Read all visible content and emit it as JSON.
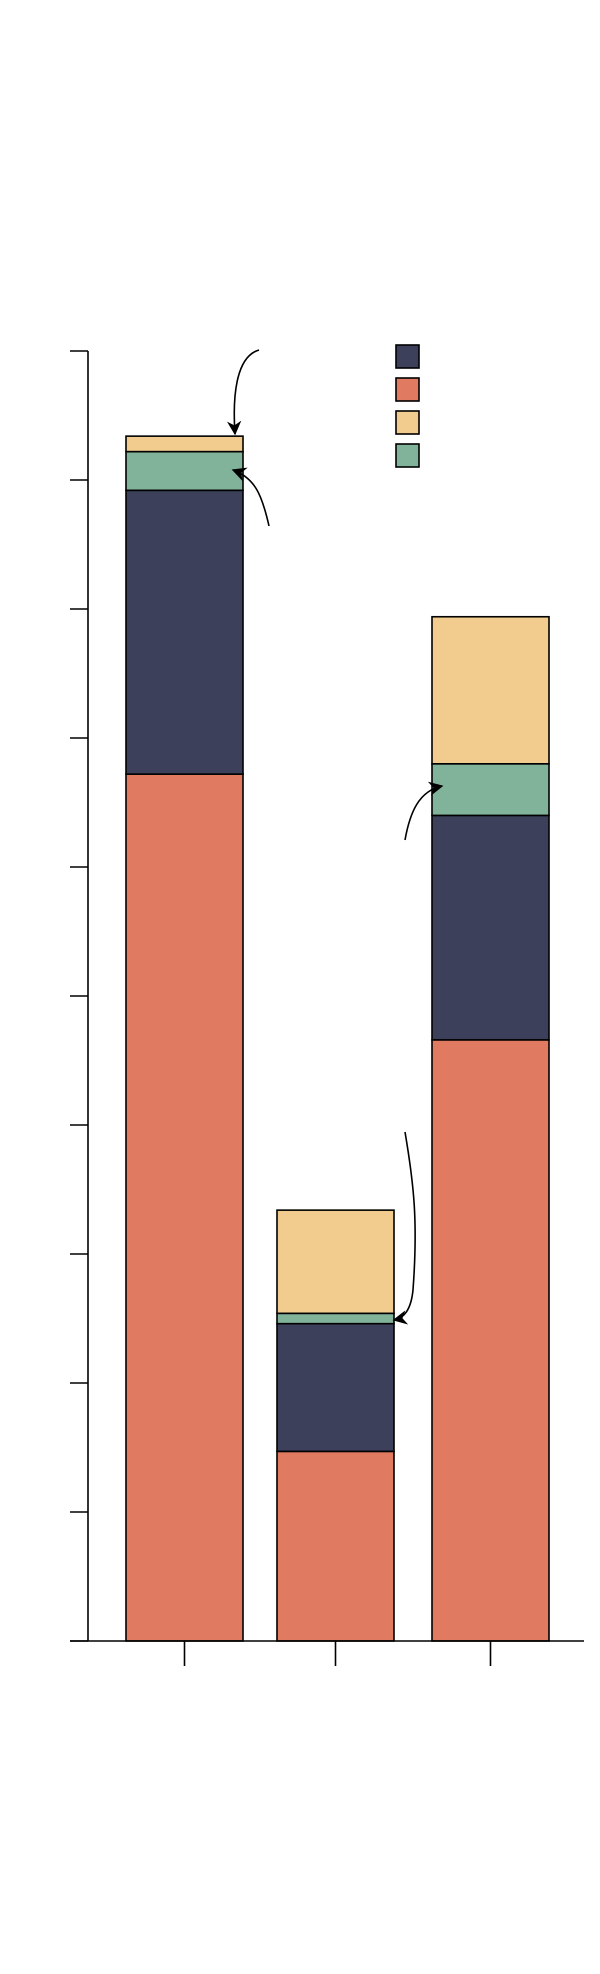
{
  "chart_data": {
    "type": "bar",
    "stacked": true,
    "title": "",
    "xlabel": "",
    "ylabel": "",
    "categories": [
      "",
      "",
      ""
    ],
    "ylim": [
      0,
      100
    ],
    "yticks": [
      0,
      10,
      20,
      30,
      40,
      50,
      60,
      70,
      80,
      90,
      100
    ],
    "grid": false,
    "legend_position": "top-right",
    "series": [
      {
        "name": "",
        "color": "#e07b62",
        "values": [
          67.2,
          14.7,
          46.6
        ]
      },
      {
        "name": "",
        "color": "#3d405b",
        "values": [
          22.0,
          9.9,
          17.4
        ]
      },
      {
        "name": "",
        "color": "#81b29a",
        "values": [
          3.0,
          0.8,
          4.0
        ]
      },
      {
        "name": "",
        "color": "#f2cc8f",
        "values": [
          1.2,
          8.0,
          11.4
        ]
      }
    ],
    "legend_order": [
      1,
      0,
      3,
      2
    ]
  }
}
